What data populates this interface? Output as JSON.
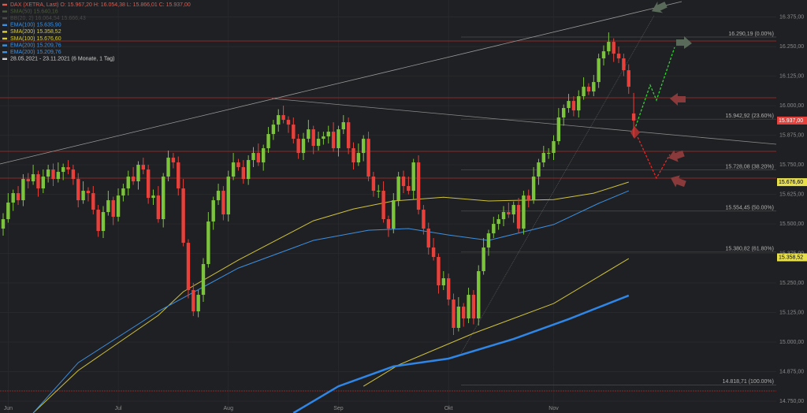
{
  "chart_data": {
    "type": "candlestick",
    "legend": [
      {
        "text": "DAX (XETRA, Last)   O: 15.967,20   H: 16.054,38   L: 15.866,01   C: 15.937,00",
        "color": "#e05a4f"
      },
      {
        "text": "SMA(50)   15.640,16",
        "color": "#4a5a3a"
      },
      {
        "text": "BB(20, 2)   16.064,54      15.666,43",
        "color": "#4a4a4a"
      },
      {
        "text": "EMA(100)   15.635,90",
        "color": "#3d8fe0"
      },
      {
        "text": "SMA(200)   15.358,52",
        "color": "#d8cc3a"
      },
      {
        "text": "SMA(100)   15.676,60",
        "color": "#d8cc3a"
      },
      {
        "text": "EMA(200)   15.209,76",
        "color": "#3d8fe0"
      },
      {
        "text": "EMA(200)   15.209,76",
        "color": "#3d8fe0"
      },
      {
        "text": "28.05.2021 - 23.11.2021    (6 Monate, 1 Tag)",
        "color": "#d0d0d0"
      }
    ],
    "x_labels": [
      {
        "index": 1,
        "label": "Jun"
      },
      {
        "index": 23,
        "label": "Jul"
      },
      {
        "index": 45,
        "label": "Aug"
      },
      {
        "index": 67,
        "label": "Sep"
      },
      {
        "index": 89,
        "label": "Okt"
      },
      {
        "index": 110,
        "label": "Nov"
      }
    ],
    "open": [
      15480,
      15520,
      15590,
      15630,
      15600,
      15690,
      15680,
      15710,
      15650,
      15700,
      15730,
      15690,
      15720,
      15740,
      15730,
      15690,
      15600,
      15640,
      15630,
      15560,
      15470,
      15550,
      15600,
      15530,
      15620,
      15650,
      15700,
      15680,
      15750,
      15730,
      15610,
      15620,
      15520,
      15700,
      15780,
      15760,
      15650,
      15420,
      15220,
      15130,
      15200,
      15330,
      15510,
      15600,
      15640,
      15540,
      15700,
      15760,
      15740,
      15690,
      15770,
      15800,
      15760,
      15820,
      15880,
      15920,
      15960,
      15940,
      15920,
      15860,
      15800,
      15860,
      15900,
      15830,
      15860,
      15870,
      15890,
      15820,
      15900,
      15930,
      15820,
      15760,
      15800,
      15860,
      15700,
      15640,
      15640,
      15520,
      15480,
      15600,
      15700,
      15660,
      15640,
      15760,
      15560,
      15480,
      15400,
      15360,
      15240,
      15270,
      15180,
      15060,
      15150,
      15100,
      15200,
      15100,
      15300,
      15400,
      15460,
      15500,
      15520,
      15550,
      15540,
      15580,
      15480,
      15620,
      15600,
      15700,
      15760,
      15800,
      15800,
      15850,
      15950,
      15990,
      16020,
      15980,
      16040,
      16080,
      16060,
      16100,
      16200,
      16230,
      16270,
      16220,
      16200,
      16150,
      15967
    ],
    "high": [
      15545,
      15630,
      15645,
      15660,
      15710,
      15715,
      15750,
      15725,
      15730,
      15750,
      15755,
      15760,
      15755,
      15770,
      15750,
      15715,
      15680,
      15655,
      15660,
      15580,
      15575,
      15640,
      15615,
      15650,
      15670,
      15725,
      15740,
      15765,
      15780,
      15750,
      15645,
      15660,
      15715,
      15810,
      15800,
      15785,
      15690,
      15435,
      15250,
      15220,
      15355,
      15550,
      15615,
      15670,
      15660,
      15725,
      15800,
      15775,
      15770,
      15790,
      15825,
      15840,
      15835,
      15910,
      15940,
      15985,
      16000,
      15955,
      15950,
      15880,
      15885,
      15940,
      15915,
      15890,
      15890,
      15915,
      15930,
      15915,
      15960,
      15950,
      15845,
      15840,
      15875,
      15890,
      15720,
      15665,
      15680,
      15535,
      15630,
      15720,
      15725,
      15700,
      15775,
      15790,
      15580,
      15505,
      15440,
      15375,
      15300,
      15290,
      15205,
      15190,
      15165,
      15230,
      15220,
      15325,
      15440,
      15475,
      15530,
      15540,
      15575,
      15590,
      15595,
      15610,
      15640,
      15645,
      15740,
      15775,
      15830,
      15820,
      15875,
      15990,
      16005,
      16050,
      16040,
      16065,
      16120,
      16095,
      16130,
      16220,
      16255,
      16310,
      16285,
      16250,
      16220,
      16175,
      16054
    ],
    "low": [
      15450,
      15505,
      15555,
      15580,
      15575,
      15650,
      15665,
      15615,
      15630,
      15675,
      15660,
      15675,
      15685,
      15710,
      15665,
      15570,
      15585,
      15595,
      15540,
      15445,
      15440,
      15535,
      15495,
      15510,
      15595,
      15620,
      15665,
      15645,
      15710,
      15585,
      15580,
      15505,
      15485,
      15680,
      15735,
      15620,
      15405,
      15185,
      15110,
      15105,
      15170,
      15315,
      15475,
      15580,
      15515,
      15510,
      15685,
      15725,
      15670,
      15665,
      15740,
      15745,
      15725,
      15800,
      15855,
      15890,
      15925,
      15885,
      15840,
      15775,
      15770,
      15845,
      15795,
      15810,
      15835,
      15840,
      15805,
      15785,
      15880,
      15795,
      15730,
      15745,
      15765,
      15680,
      15615,
      15610,
      15505,
      15445,
      15460,
      15575,
      15630,
      15625,
      15605,
      15540,
      15455,
      15370,
      15345,
      15205,
      15220,
      15155,
      15030,
      15045,
      15065,
      15080,
      15075,
      15070,
      15285,
      15365,
      15440,
      15475,
      15490,
      15525,
      15505,
      15460,
      15455,
      15570,
      15585,
      15665,
      15740,
      15775,
      15770,
      15835,
      15915,
      15970,
      15955,
      15950,
      16025,
      16045,
      16040,
      16075,
      16170,
      16215,
      16185,
      16180,
      16125,
      16050,
      15866
    ],
    "close": [
      15520,
      15590,
      15630,
      15600,
      15690,
      15680,
      15710,
      15650,
      15700,
      15730,
      15690,
      15720,
      15740,
      15730,
      15690,
      15600,
      15640,
      15630,
      15560,
      15470,
      15550,
      15600,
      15530,
      15620,
      15650,
      15700,
      15680,
      15750,
      15730,
      15610,
      15620,
      15520,
      15700,
      15780,
      15760,
      15650,
      15420,
      15220,
      15130,
      15200,
      15330,
      15510,
      15600,
      15640,
      15540,
      15700,
      15760,
      15740,
      15690,
      15770,
      15800,
      15760,
      15820,
      15880,
      15920,
      15960,
      15940,
      15920,
      15860,
      15800,
      15860,
      15900,
      15830,
      15860,
      15870,
      15890,
      15820,
      15900,
      15930,
      15820,
      15760,
      15800,
      15860,
      15700,
      15640,
      15640,
      15520,
      15480,
      15600,
      15700,
      15660,
      15640,
      15760,
      15560,
      15480,
      15400,
      15360,
      15240,
      15270,
      15180,
      15060,
      15150,
      15100,
      15200,
      15100,
      15300,
      15400,
      15460,
      15500,
      15520,
      15550,
      15540,
      15580,
      15480,
      15620,
      15600,
      15700,
      15760,
      15800,
      15800,
      15850,
      15950,
      15990,
      16020,
      15980,
      16040,
      16080,
      16060,
      16100,
      16200,
      16230,
      16270,
      16220,
      16200,
      16150,
      16080,
      15937
    ],
    "up_color": "#7cc43c",
    "down_color": "#e8403a",
    "lines": [
      {
        "name": "SMA(100)",
        "color": "#cfc23a",
        "width": 1,
        "x": [
          6,
          15,
          31,
          36,
          47,
          62,
          70,
          78,
          88,
          97,
          110,
          118,
          125
        ],
        "values": [
          14700,
          14880,
          15113,
          15213,
          15347,
          15513,
          15563,
          15597,
          15613,
          15597,
          15603,
          15630,
          15677
        ]
      },
      {
        "name": "SMA(200)",
        "color": "#cfc23a",
        "width": 1,
        "x": [
          72,
          79,
          94,
          110,
          125
        ],
        "values": [
          14813,
          14903,
          15037,
          15163,
          15353
        ]
      },
      {
        "name": "EMA(100)",
        "color": "#3d8fe0",
        "width": 1,
        "x": [
          6,
          15,
          31,
          47,
          62,
          73,
          81,
          89,
          97,
          110,
          119,
          125
        ],
        "values": [
          14700,
          14913,
          15130,
          15313,
          15430,
          15473,
          15480,
          15453,
          15430,
          15497,
          15587,
          15640
        ]
      },
      {
        "name": "EMA(200)",
        "color": "#2f86e6",
        "width": 2.5,
        "x": [
          58,
          67,
          78,
          89,
          102,
          113,
          125
        ],
        "values": [
          14700,
          14813,
          14897,
          14930,
          15013,
          15097,
          15197
        ]
      }
    ],
    "fib_levels": [
      {
        "value": 16290.19,
        "label": "16.290,19 (0.00%)"
      },
      {
        "value": 15942.92,
        "label": "15.942,92 (23.60%)"
      },
      {
        "value": 15728.08,
        "label": "15.728,08 (38.20%)"
      },
      {
        "value": 15554.45,
        "label": "15.554,45 (50.00%)"
      },
      {
        "value": 15380.82,
        "label": "15.380,82 (61.80%)"
      },
      {
        "value": 14818.71,
        "label": "14.818,71 (100.00%)"
      }
    ],
    "price_markers": [
      {
        "value": 15937,
        "label": "15.937,00",
        "color": "#e8403a",
        "text_color": "#ffffff"
      },
      {
        "value": 15676.6,
        "label": "15.676,60",
        "color": "#e8e04a",
        "text_color": "#000000"
      },
      {
        "value": 15358.52,
        "label": "15.358,52",
        "color": "#e8e04a",
        "text_color": "#000000"
      }
    ],
    "ylim": [
      14700,
      16447
    ],
    "yticks": [
      {
        "value": 16375,
        "label": "16.375,00"
      },
      {
        "value": 16250,
        "label": "16.250,00"
      },
      {
        "value": 16125,
        "label": "16.125,00"
      },
      {
        "value": 16000,
        "label": "16.000,00"
      },
      {
        "value": 15875,
        "label": "15.875,00"
      },
      {
        "value": 15750,
        "label": "15.750,00"
      },
      {
        "value": 15625,
        "label": "15.625,00"
      },
      {
        "value": 15500,
        "label": "15.500,00"
      },
      {
        "value": 15375,
        "label": "15.375,00"
      },
      {
        "value": 15250,
        "label": "15.250,00"
      },
      {
        "value": 15125,
        "label": "15.125,00"
      },
      {
        "value": 15000,
        "label": "15.000,00"
      },
      {
        "value": 14875,
        "label": "14.875,00"
      },
      {
        "value": 14750,
        "label": "14.750,00"
      }
    ],
    "grid": true
  }
}
